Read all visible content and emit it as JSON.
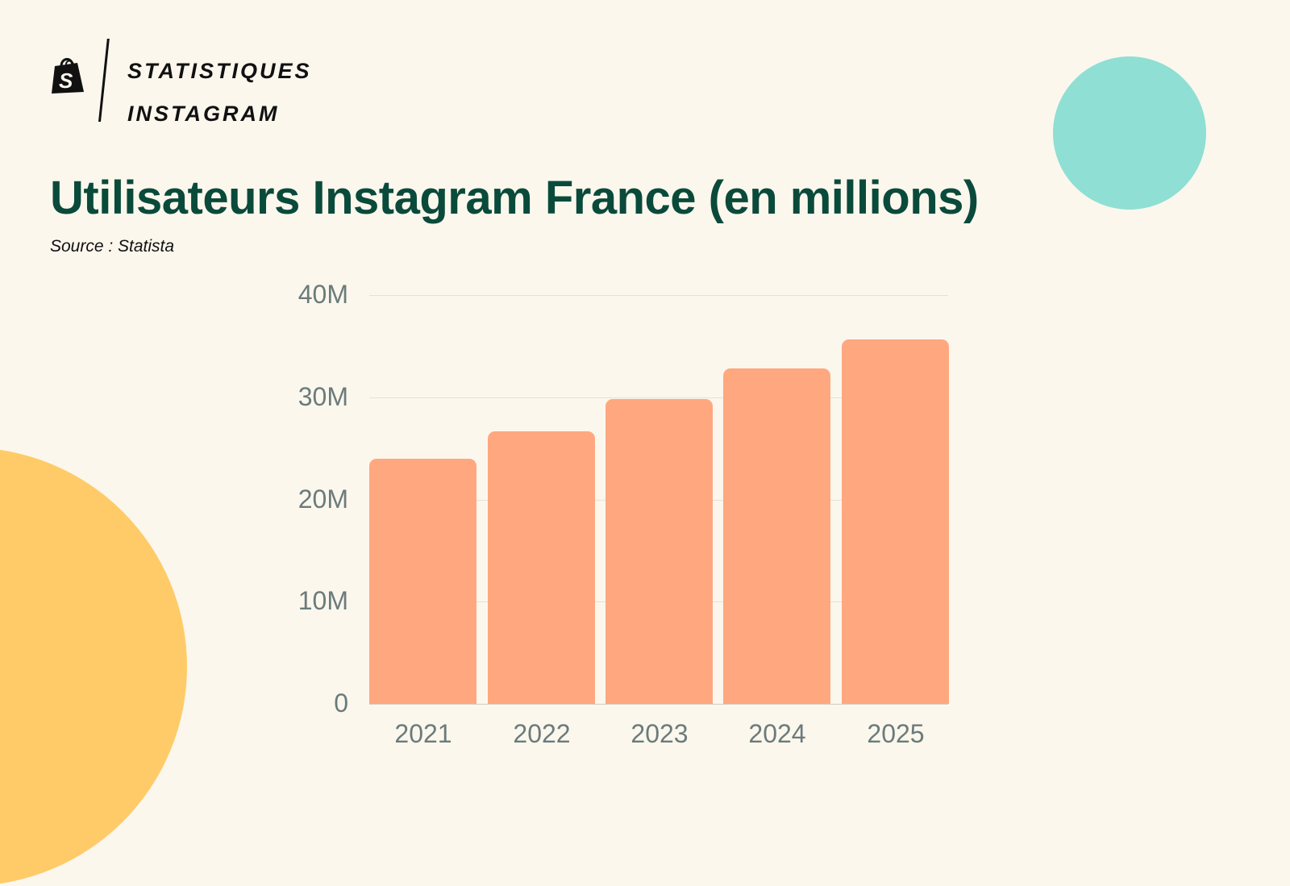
{
  "brand": {
    "logo_icon": "shopify-bag-icon",
    "line1": "STATISTIQUES",
    "line2": "INSTAGRAM"
  },
  "header": {
    "title": "Utilisateurs Instagram France (en millions)",
    "source": "Source : Statista"
  },
  "colors": {
    "background": "#fbf7ed",
    "title": "#0a4a3b",
    "bar": "#ffa880",
    "accent_teal": "#8fdfd4",
    "accent_yellow": "#ffcb69",
    "axis_text": "#6b7b7b"
  },
  "chart_data": {
    "type": "bar",
    "title": "Utilisateurs Instagram France (en millions)",
    "subtitle": "Source : Statista",
    "xlabel": "",
    "ylabel": "",
    "categories": [
      "2021",
      "2022",
      "2023",
      "2024",
      "2025"
    ],
    "values": [
      24.0,
      26.7,
      29.8,
      32.8,
      35.7
    ],
    "unit": "millions",
    "ylim": [
      0,
      40
    ],
    "yticks": [
      0,
      10,
      20,
      30,
      40
    ],
    "ytick_labels": [
      "0",
      "10M",
      "20M",
      "30M",
      "40M"
    ],
    "grid": true,
    "legend": null
  }
}
